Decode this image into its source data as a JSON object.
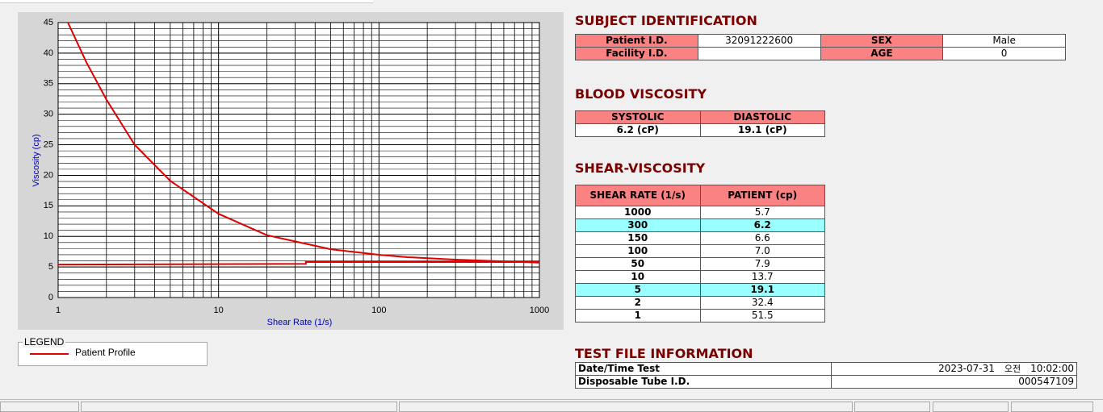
{
  "chart_data": {
    "type": "line",
    "x_label": "Shear Rate (1/s)",
    "y_label": "Viscosity (cp)",
    "xscale": "log",
    "xlim": [
      1,
      1000
    ],
    "xticks": [
      1,
      10,
      100,
      1000
    ],
    "ylim": [
      0,
      45
    ],
    "yticks": [
      0,
      5,
      10,
      15,
      20,
      25,
      30,
      35,
      40,
      45
    ],
    "grid": true,
    "minor_grid": true,
    "legend_title": "LEGEND",
    "series": [
      {
        "name": "Patient Profile",
        "color": "#e00000",
        "x": [
          1.15,
          1.5,
          2,
          3,
          5,
          10,
          20,
          50,
          100,
          150,
          300,
          1000
        ],
        "values": [
          45,
          38.5,
          32.4,
          25,
          19.1,
          13.7,
          10.2,
          7.9,
          7.0,
          6.6,
          6.2,
          5.7
        ]
      },
      {
        "color": "#e00000",
        "x": [
          1,
          35,
          35,
          1000
        ],
        "values": [
          5.4,
          5.5,
          5.8,
          5.8
        ]
      }
    ]
  },
  "subject": {
    "title": "SUBJECT IDENTIFICATION",
    "fields": [
      {
        "label": "Patient I.D.",
        "value": "32091222600"
      },
      {
        "label": "SEX",
        "value": "Male"
      },
      {
        "label": "Facility I.D."
      },
      {
        "label": "AGE",
        "value": "0"
      }
    ]
  },
  "blood": {
    "title": "BLOOD VISCOSITY",
    "headers": [
      "SYSTOLIC",
      "DIASTOLIC"
    ],
    "values": [
      "6.2 (cP)",
      "19.1 (cP)"
    ]
  },
  "shear": {
    "title": "SHEAR-VISCOSITY",
    "headers": [
      "SHEAR RATE (1/s)",
      "PATIENT (cp)"
    ],
    "rows": [
      {
        "rate": "1000",
        "patient": "5.7"
      },
      {
        "rate": "300",
        "patient": "6.2",
        "highlight": true
      },
      {
        "rate": "150",
        "patient": "6.6"
      },
      {
        "rate": "100",
        "patient": "7.0"
      },
      {
        "rate": "50",
        "patient": "7.9"
      },
      {
        "rate": "10",
        "patient": "13.7"
      },
      {
        "rate": "5",
        "patient": "19.1",
        "highlight": true
      },
      {
        "rate": "2",
        "patient": "32.4"
      },
      {
        "rate": "1",
        "patient": "51.5"
      }
    ]
  },
  "test_file": {
    "title": "TEST FILE INFORMATION",
    "rows": [
      {
        "label": "Date/Time Test",
        "value": "2023-07-31",
        "ampm": "오전",
        "time": "10:02:00"
      },
      {
        "label": "Disposable Tube I.D.",
        "value": "000547109"
      }
    ]
  }
}
